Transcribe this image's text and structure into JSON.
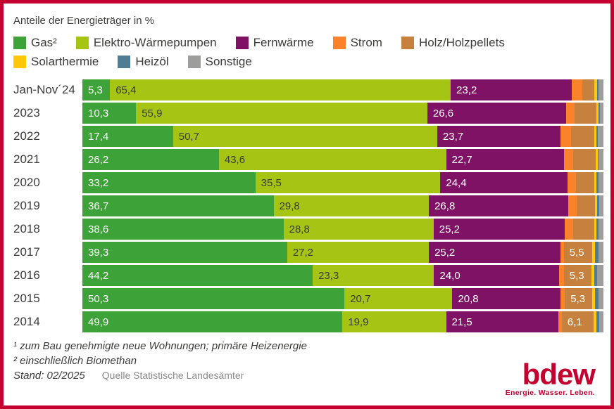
{
  "frame": {
    "border_color": "#C3002F",
    "background": "#FFFFFF"
  },
  "title": "Anteile der Energieträger in %",
  "legend": [
    {
      "key": "gas",
      "label": "Gas²",
      "color": "#3DA338"
    },
    {
      "key": "waermepumpen",
      "label": "Elektro-Wärmepumpen",
      "color": "#A6C414"
    },
    {
      "key": "fernwaerme",
      "label": "Fernwärme",
      "color": "#801266"
    },
    {
      "key": "strom",
      "label": "Strom",
      "color": "#F9822A"
    },
    {
      "key": "holz",
      "label": "Holz/Holzpellets",
      "color": "#C5813D"
    },
    {
      "key": "solarthermie",
      "label": "Solarthermie",
      "color": "#FFC907"
    },
    {
      "key": "heizoel",
      "label": "Heizöl",
      "color": "#4F7D96"
    },
    {
      "key": "sonstige",
      "label": "Sonstige",
      "color": "#9D9D9C"
    }
  ],
  "chart_data": {
    "type": "bar",
    "orientation": "horizontal",
    "stacked": true,
    "unit": "%",
    "xlim": [
      0,
      100
    ],
    "title": "Anteile der Energieträger in %",
    "series_keys": [
      "gas",
      "waermepumpen",
      "fernwaerme",
      "strom",
      "holz",
      "solarthermie",
      "heizoel",
      "sonstige"
    ],
    "value_label_colors": {
      "gas": "#FFFFFF",
      "waermepumpen": "#3C3C3B",
      "fernwaerme": "#FFFFFF",
      "holz": "#FFFFFF"
    },
    "note": "Unlabeled minor segment values are estimated from bar pixel widths; labeled values read directly from the chart.",
    "rows": [
      {
        "label": "Jan-Nov´24",
        "segments": [
          {
            "key": "gas",
            "value": 5.3,
            "text": "5,3"
          },
          {
            "key": "waermepumpen",
            "value": 65.4,
            "text": "65,4"
          },
          {
            "key": "fernwaerme",
            "value": 23.2,
            "text": "23,2"
          },
          {
            "key": "strom",
            "value": 2.0
          },
          {
            "key": "holz",
            "value": 2.4
          },
          {
            "key": "solarthermie",
            "value": 0.5
          },
          {
            "key": "heizoel",
            "value": 0.3
          },
          {
            "key": "sonstige",
            "value": 0.9
          }
        ]
      },
      {
        "label": "2023",
        "segments": [
          {
            "key": "gas",
            "value": 10.3,
            "text": "10,3"
          },
          {
            "key": "waermepumpen",
            "value": 55.9,
            "text": "55,9"
          },
          {
            "key": "fernwaerme",
            "value": 26.6,
            "text": "26,6"
          },
          {
            "key": "strom",
            "value": 1.6
          },
          {
            "key": "holz",
            "value": 4.3
          },
          {
            "key": "solarthermie",
            "value": 0.4
          },
          {
            "key": "heizoel",
            "value": 0.2
          },
          {
            "key": "sonstige",
            "value": 0.7
          }
        ]
      },
      {
        "label": "2022",
        "segments": [
          {
            "key": "gas",
            "value": 17.4,
            "text": "17,4"
          },
          {
            "key": "waermepumpen",
            "value": 50.7,
            "text": "50,7"
          },
          {
            "key": "fernwaerme",
            "value": 23.7,
            "text": "23,7"
          },
          {
            "key": "strom",
            "value": 2.0
          },
          {
            "key": "holz",
            "value": 4.4
          },
          {
            "key": "solarthermie",
            "value": 0.4
          },
          {
            "key": "heizoel",
            "value": 0.3
          },
          {
            "key": "sonstige",
            "value": 1.1
          }
        ]
      },
      {
        "label": "2021",
        "segments": [
          {
            "key": "gas",
            "value": 26.2,
            "text": "26,2"
          },
          {
            "key": "waermepumpen",
            "value": 43.6,
            "text": "43,6"
          },
          {
            "key": "fernwaerme",
            "value": 22.7,
            "text": "22,7"
          },
          {
            "key": "strom",
            "value": 1.7
          },
          {
            "key": "holz",
            "value": 4.3
          },
          {
            "key": "solarthermie",
            "value": 0.4
          },
          {
            "key": "heizoel",
            "value": 0.2
          },
          {
            "key": "sonstige",
            "value": 0.9
          }
        ]
      },
      {
        "label": "2020",
        "segments": [
          {
            "key": "gas",
            "value": 33.2,
            "text": "33,2"
          },
          {
            "key": "waermepumpen",
            "value": 35.5,
            "text": "35,5"
          },
          {
            "key": "fernwaerme",
            "value": 24.4,
            "text": "24,4"
          },
          {
            "key": "strom",
            "value": 1.7
          },
          {
            "key": "holz",
            "value": 3.5
          },
          {
            "key": "solarthermie",
            "value": 0.4
          },
          {
            "key": "heizoel",
            "value": 0.4
          },
          {
            "key": "sonstige",
            "value": 0.9
          }
        ]
      },
      {
        "label": "2019",
        "segments": [
          {
            "key": "gas",
            "value": 36.7,
            "text": "36,7"
          },
          {
            "key": "waermepumpen",
            "value": 29.8,
            "text": "29,8"
          },
          {
            "key": "fernwaerme",
            "value": 26.8,
            "text": "26,8"
          },
          {
            "key": "strom",
            "value": 1.5
          },
          {
            "key": "holz",
            "value": 3.6
          },
          {
            "key": "solarthermie",
            "value": 0.4
          },
          {
            "key": "heizoel",
            "value": 0.4
          },
          {
            "key": "sonstige",
            "value": 0.8
          }
        ]
      },
      {
        "label": "2018",
        "segments": [
          {
            "key": "gas",
            "value": 38.6,
            "text": "38,6"
          },
          {
            "key": "waermepumpen",
            "value": 28.8,
            "text": "28,8"
          },
          {
            "key": "fernwaerme",
            "value": 25.2,
            "text": "25,2"
          },
          {
            "key": "strom",
            "value": 1.6
          },
          {
            "key": "holz",
            "value": 4.0
          },
          {
            "key": "solarthermie",
            "value": 0.4
          },
          {
            "key": "heizoel",
            "value": 0.4
          },
          {
            "key": "sonstige",
            "value": 1.0
          }
        ]
      },
      {
        "label": "2017",
        "segments": [
          {
            "key": "gas",
            "value": 39.3,
            "text": "39,3"
          },
          {
            "key": "waermepumpen",
            "value": 27.2,
            "text": "27,2"
          },
          {
            "key": "fernwaerme",
            "value": 25.2,
            "text": "25,2"
          },
          {
            "key": "strom",
            "value": 0.7
          },
          {
            "key": "holz",
            "value": 5.5,
            "text": "5,5"
          },
          {
            "key": "solarthermie",
            "value": 0.5
          },
          {
            "key": "heizoel",
            "value": 0.6
          },
          {
            "key": "sonstige",
            "value": 1.0
          }
        ]
      },
      {
        "label": "2016",
        "segments": [
          {
            "key": "gas",
            "value": 44.2,
            "text": "44,2"
          },
          {
            "key": "waermepumpen",
            "value": 23.3,
            "text": "23,3"
          },
          {
            "key": "fernwaerme",
            "value": 24.0,
            "text": "24,0"
          },
          {
            "key": "strom",
            "value": 0.9
          },
          {
            "key": "holz",
            "value": 5.3,
            "text": "5,3"
          },
          {
            "key": "solarthermie",
            "value": 0.5
          },
          {
            "key": "heizoel",
            "value": 0.6
          },
          {
            "key": "sonstige",
            "value": 1.2
          }
        ]
      },
      {
        "label": "2015",
        "segments": [
          {
            "key": "gas",
            "value": 50.3,
            "text": "50,3"
          },
          {
            "key": "waermepumpen",
            "value": 20.7,
            "text": "20,7"
          },
          {
            "key": "fernwaerme",
            "value": 20.8,
            "text": "20,8"
          },
          {
            "key": "strom",
            "value": 0.8
          },
          {
            "key": "holz",
            "value": 5.3,
            "text": "5,3"
          },
          {
            "key": "solarthermie",
            "value": 0.5
          },
          {
            "key": "heizoel",
            "value": 0.6
          },
          {
            "key": "sonstige",
            "value": 1.0
          }
        ]
      },
      {
        "label": "2014",
        "segments": [
          {
            "key": "gas",
            "value": 49.9,
            "text": "49,9"
          },
          {
            "key": "waermepumpen",
            "value": 19.9,
            "text": "19,9"
          },
          {
            "key": "fernwaerme",
            "value": 21.5,
            "text": "21,5"
          },
          {
            "key": "strom",
            "value": 0.7
          },
          {
            "key": "holz",
            "value": 6.1,
            "text": "6,1"
          },
          {
            "key": "solarthermie",
            "value": 0.6
          },
          {
            "key": "heizoel",
            "value": 0.5
          },
          {
            "key": "sonstige",
            "value": 0.8
          }
        ]
      }
    ]
  },
  "footnotes": {
    "line1": "¹ zum Bau genehmigte neue Wohnungen; primäre Heizenergie",
    "line2": "² einschließlich Biomethan",
    "stand": "Stand: 02/2025",
    "source": "Quelle Statistische Landesämter"
  },
  "logo": {
    "word": "bdew",
    "tagline": "Energie. Wasser. Leben."
  }
}
